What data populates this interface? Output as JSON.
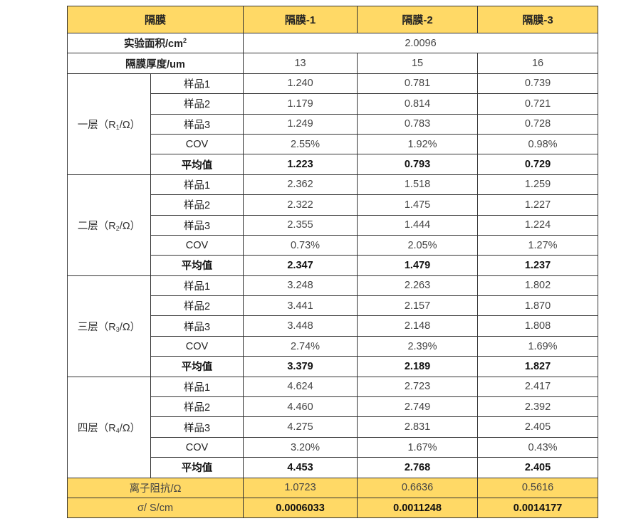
{
  "header": {
    "label": "隔膜",
    "columns": [
      "隔膜-1",
      "隔膜-2",
      "隔膜-3"
    ]
  },
  "area": {
    "label": "实验面积/cm",
    "sup": "2",
    "value": "2.0096"
  },
  "thickness": {
    "label": "隔膜厚度/um",
    "values": [
      "13",
      "15",
      "16"
    ]
  },
  "groups": [
    {
      "prefix": "一层（R",
      "sub": "1",
      "suffix": "/Ω）",
      "rows": [
        {
          "label": "样品1",
          "values": [
            "1.240",
            "0.781",
            "0.739"
          ]
        },
        {
          "label": "样品2",
          "values": [
            "1.179",
            "0.814",
            "0.721"
          ]
        },
        {
          "label": "样品3",
          "values": [
            "1.249",
            "0.783",
            "0.728"
          ]
        },
        {
          "label": "COV",
          "values": [
            "2.55%",
            "1.92%",
            "0.98%"
          ]
        },
        {
          "label": "平均值",
          "values": [
            "1.223",
            "0.793",
            "0.729"
          ]
        }
      ]
    },
    {
      "prefix": "二层（R",
      "sub": "2",
      "suffix": "/Ω）",
      "rows": [
        {
          "label": "样品1",
          "values": [
            "2.362",
            "1.518",
            "1.259"
          ]
        },
        {
          "label": "样品2",
          "values": [
            "2.322",
            "1.475",
            "1.227"
          ]
        },
        {
          "label": "样品3",
          "values": [
            "2.355",
            "1.444",
            "1.224"
          ]
        },
        {
          "label": "COV",
          "values": [
            "0.73%",
            "2.05%",
            "1.27%"
          ]
        },
        {
          "label": "平均值",
          "values": [
            "2.347",
            "1.479",
            "1.237"
          ]
        }
      ]
    },
    {
      "prefix": "三层（R",
      "sub": "3",
      "suffix": "/Ω）",
      "rows": [
        {
          "label": "样品1",
          "values": [
            "3.248",
            "2.263",
            "1.802"
          ]
        },
        {
          "label": "样品2",
          "values": [
            "3.441",
            "2.157",
            "1.870"
          ]
        },
        {
          "label": "样品3",
          "values": [
            "3.448",
            "2.148",
            "1.808"
          ]
        },
        {
          "label": "COV",
          "values": [
            "2.74%",
            "2.39%",
            "1.69%"
          ]
        },
        {
          "label": "平均值",
          "values": [
            "3.379",
            "2.189",
            "1.827"
          ]
        }
      ]
    },
    {
      "prefix": "四层（R",
      "sub": "4",
      "suffix": "/Ω）",
      "rows": [
        {
          "label": "样品1",
          "values": [
            "4.624",
            "2.723",
            "2.417"
          ]
        },
        {
          "label": "样品2",
          "values": [
            "4.460",
            "2.749",
            "2.392"
          ]
        },
        {
          "label": "样品3",
          "values": [
            "4.275",
            "2.831",
            "2.405"
          ]
        },
        {
          "label": "COV",
          "values": [
            "3.20%",
            "1.67%",
            "0.43%"
          ]
        },
        {
          "label": "平均值",
          "values": [
            "4.453",
            "2.768",
            "2.405"
          ]
        }
      ]
    }
  ],
  "ion_resistance": {
    "label": "离子阻抗/Ω",
    "values": [
      "1.0723",
      "0.6636",
      "0.5616"
    ]
  },
  "conductivity": {
    "label": "σ/ S/cm",
    "values": [
      "0.0006033",
      "0.0011248",
      "0.0014177"
    ]
  },
  "colors": {
    "highlight": "#FFD966",
    "border": "#333333"
  }
}
